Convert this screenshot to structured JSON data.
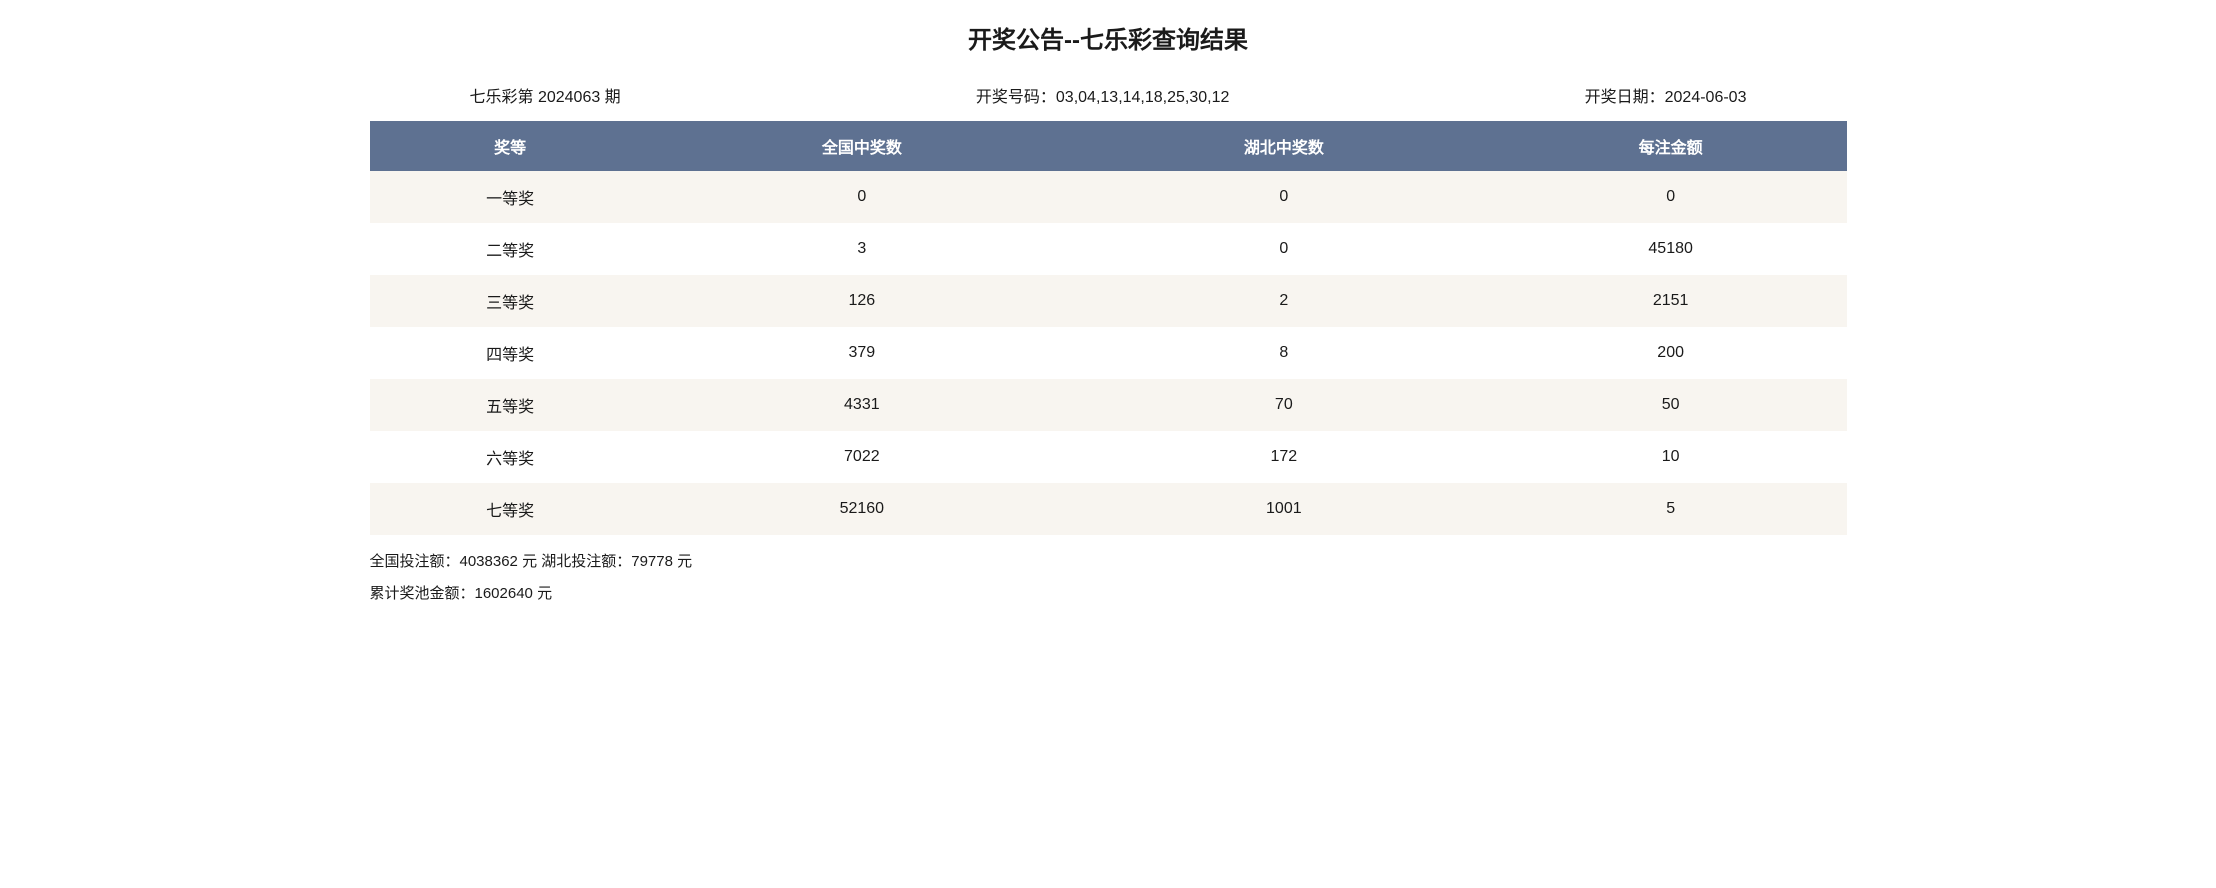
{
  "title": "开奖公告--七乐彩查询结果",
  "info": {
    "period": "七乐彩第 2024063 期",
    "numbers": "开奖号码：03,04,13,14,18,25,30,12",
    "date": "开奖日期：2024-06-03"
  },
  "table": {
    "columns": [
      "奖等",
      "全国中奖数",
      "湖北中奖数",
      "每注金额"
    ],
    "rows": [
      [
        "一等奖",
        "0",
        "0",
        "0"
      ],
      [
        "二等奖",
        "3",
        "0",
        "45180"
      ],
      [
        "三等奖",
        "126",
        "2",
        "2151"
      ],
      [
        "四等奖",
        "379",
        "8",
        "200"
      ],
      [
        "五等奖",
        "4331",
        "70",
        "50"
      ],
      [
        "六等奖",
        "7022",
        "172",
        "10"
      ],
      [
        "七等奖",
        "52160",
        "1001",
        "5"
      ]
    ]
  },
  "summary": {
    "line1": "全国投注额：4038362 元 湖北投注额：79778 元",
    "line2": "累计奖池金额：1602640 元"
  },
  "styling": {
    "header_bg": "#5e7191",
    "header_text_color": "#ffffff",
    "row_odd_bg": "#f8f5f0",
    "row_even_bg": "#ffffff",
    "text_color": "#1a1a1a",
    "title_fontsize": 24,
    "body_fontsize": 16,
    "column_widths_pct": [
      25,
      25,
      25,
      25
    ]
  }
}
